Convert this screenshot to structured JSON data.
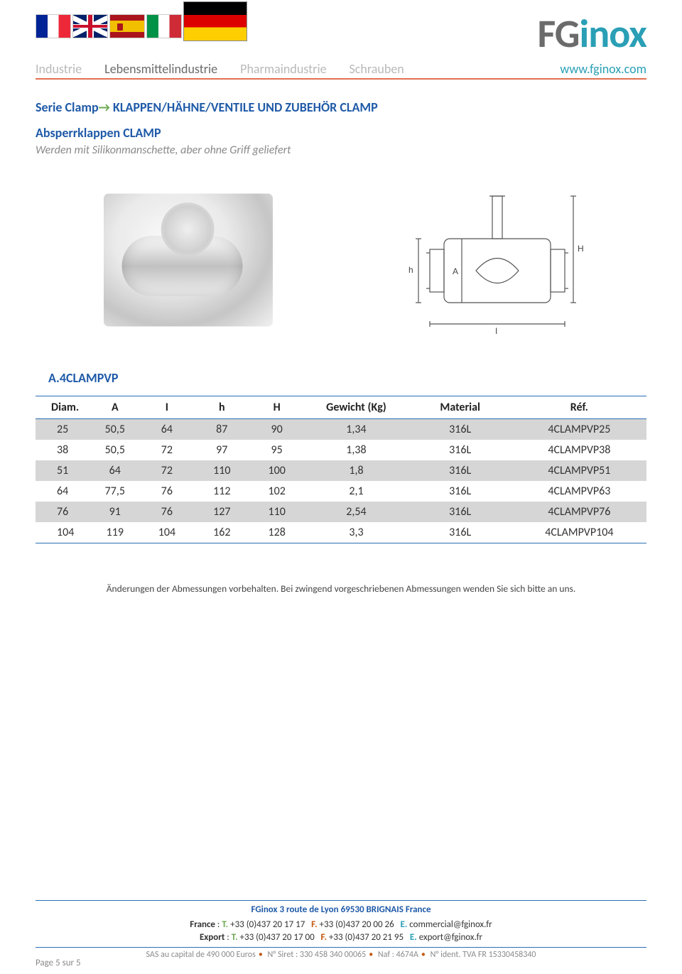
{
  "header": {
    "logo_gray": "FG",
    "logo_teal": "inox",
    "website": "www.fginox.com"
  },
  "nav": {
    "items": [
      {
        "label": "Industrie",
        "active": false
      },
      {
        "label": "Lebensmittelindustrie",
        "active": true
      },
      {
        "label": "Pharmaindustrie",
        "active": false
      },
      {
        "label": "Schrauben",
        "active": false
      }
    ]
  },
  "content": {
    "series_prefix": "Serie Clamp",
    "series_title": " KLAPPEN/HÄHNE/VENTILE UND ZUBEHÖR CLAMP",
    "section_title": "Absperrklappen CLAMP",
    "subtitle": "Werden mit Silikonmanschette, aber ohne Griff geliefert",
    "refcode": "A.4CLAMPVP",
    "schema_labels": {
      "H": "H",
      "h": "h",
      "A": "A",
      "I": "I"
    }
  },
  "table": {
    "columns": [
      "Diam.",
      "A",
      "I",
      "h",
      "H",
      "Gewicht (Kg)",
      "Material",
      "Réf."
    ],
    "col_widths": [
      "9%",
      "8%",
      "9%",
      "9%",
      "9%",
      "17%",
      "17%",
      "22%"
    ],
    "rows": [
      {
        "cells": [
          "25",
          "50,5",
          "64",
          "87",
          "90",
          "1,34",
          "316L",
          "4CLAMPVP25"
        ],
        "shade": true
      },
      {
        "cells": [
          "38",
          "50,5",
          "72",
          "97",
          "95",
          "1,38",
          "316L",
          "4CLAMPVP38"
        ],
        "shade": false
      },
      {
        "cells": [
          "51",
          "64",
          "72",
          "110",
          "100",
          "1,8",
          "316L",
          "4CLAMPVP51"
        ],
        "shade": true
      },
      {
        "cells": [
          "64",
          "77,5",
          "76",
          "112",
          "102",
          "2,1",
          "316L",
          "4CLAMPVP63"
        ],
        "shade": false
      },
      {
        "cells": [
          "76",
          "91",
          "76",
          "127",
          "110",
          "2,54",
          "316L",
          "4CLAMPVP76"
        ],
        "shade": true
      },
      {
        "cells": [
          "104",
          "119",
          "104",
          "162",
          "128",
          "3,3",
          "316L",
          "4CLAMPVP104"
        ],
        "shade": false
      }
    ]
  },
  "disclaimer": "Änderungen der Abmessungen vorbehalten. Bei zwingend vorgeschriebenen Abmessungen wenden Sie sich bitte an uns.",
  "footer": {
    "address": "FGinox 3 route de Lyon 69530 BRIGNAIS France",
    "france_label": "France",
    "france_tel": "+33 (0)437 20 17 17",
    "france_fax": "+33 (0)437 20 00 26",
    "france_email": "commercial@fginox.fr",
    "export_label": "Export",
    "export_tel": "+33 (0)437 20 17 00",
    "export_fax": "+33 (0)437 20 21 95",
    "export_email": "export@fginox.fr",
    "legal_parts": [
      "SAS au capital de 490 000 Euros",
      "N° Siret : 330 458 340 00065",
      "Naf : 4674A",
      "N° ident. TVA FR 15330458340"
    ],
    "page": "Page 5 sur 5"
  },
  "colors": {
    "teal": "#2a9fb5",
    "blue": "#1f5aa8",
    "orange": "#e07050",
    "green": "#6aa84f",
    "gray_text": "#8a8a8a",
    "row_shade": "#d6d6d6",
    "border_blue": "#2a6fb5"
  }
}
